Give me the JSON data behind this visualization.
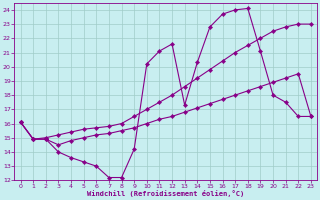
{
  "xlabel": "Windchill (Refroidissement éolien,°C)",
  "xlim": [
    -0.5,
    23.5
  ],
  "ylim": [
    12,
    24.5
  ],
  "yticks": [
    12,
    13,
    14,
    15,
    16,
    17,
    18,
    19,
    20,
    21,
    22,
    23,
    24
  ],
  "xticks": [
    0,
    1,
    2,
    3,
    4,
    5,
    6,
    7,
    8,
    9,
    10,
    11,
    12,
    13,
    14,
    15,
    16,
    17,
    18,
    19,
    20,
    21,
    22,
    23
  ],
  "line_color": "#880088",
  "bg_color": "#c8eef0",
  "grid_color": "#a0ccc8",
  "lines": [
    {
      "x": [
        0,
        1,
        2,
        3,
        4,
        5,
        6,
        7,
        8,
        9,
        10,
        11,
        12,
        13,
        14,
        15,
        16,
        17,
        18,
        19,
        20,
        21,
        22,
        23
      ],
      "y": [
        16.1,
        14.9,
        14.9,
        14.0,
        13.6,
        13.3,
        13.0,
        12.2,
        12.2,
        14.2,
        20.2,
        21.1,
        21.6,
        17.3,
        20.3,
        22.8,
        23.7,
        24.0,
        24.1,
        21.1,
        18.0,
        17.5,
        16.5,
        16.5
      ]
    },
    {
      "x": [
        0,
        1,
        2,
        3,
        4,
        5,
        6,
        7,
        8,
        9,
        10,
        11,
        12,
        13,
        14,
        15,
        16,
        17,
        18,
        19,
        20,
        21,
        22,
        23
      ],
      "y": [
        16.1,
        14.9,
        15.0,
        15.2,
        15.4,
        15.6,
        15.7,
        15.8,
        16.0,
        16.5,
        17.0,
        17.5,
        18.0,
        18.6,
        19.2,
        19.8,
        20.4,
        21.0,
        21.5,
        22.0,
        22.5,
        22.8,
        23.0,
        23.0
      ]
    },
    {
      "x": [
        0,
        1,
        2,
        3,
        4,
        5,
        6,
        7,
        8,
        9,
        10,
        11,
        12,
        13,
        14,
        15,
        16,
        17,
        18,
        19,
        20,
        21,
        22,
        23
      ],
      "y": [
        16.1,
        14.9,
        14.9,
        14.5,
        14.8,
        15.0,
        15.2,
        15.3,
        15.5,
        15.7,
        16.0,
        16.3,
        16.5,
        16.8,
        17.1,
        17.4,
        17.7,
        18.0,
        18.3,
        18.6,
        18.9,
        19.2,
        19.5,
        16.5
      ]
    }
  ]
}
